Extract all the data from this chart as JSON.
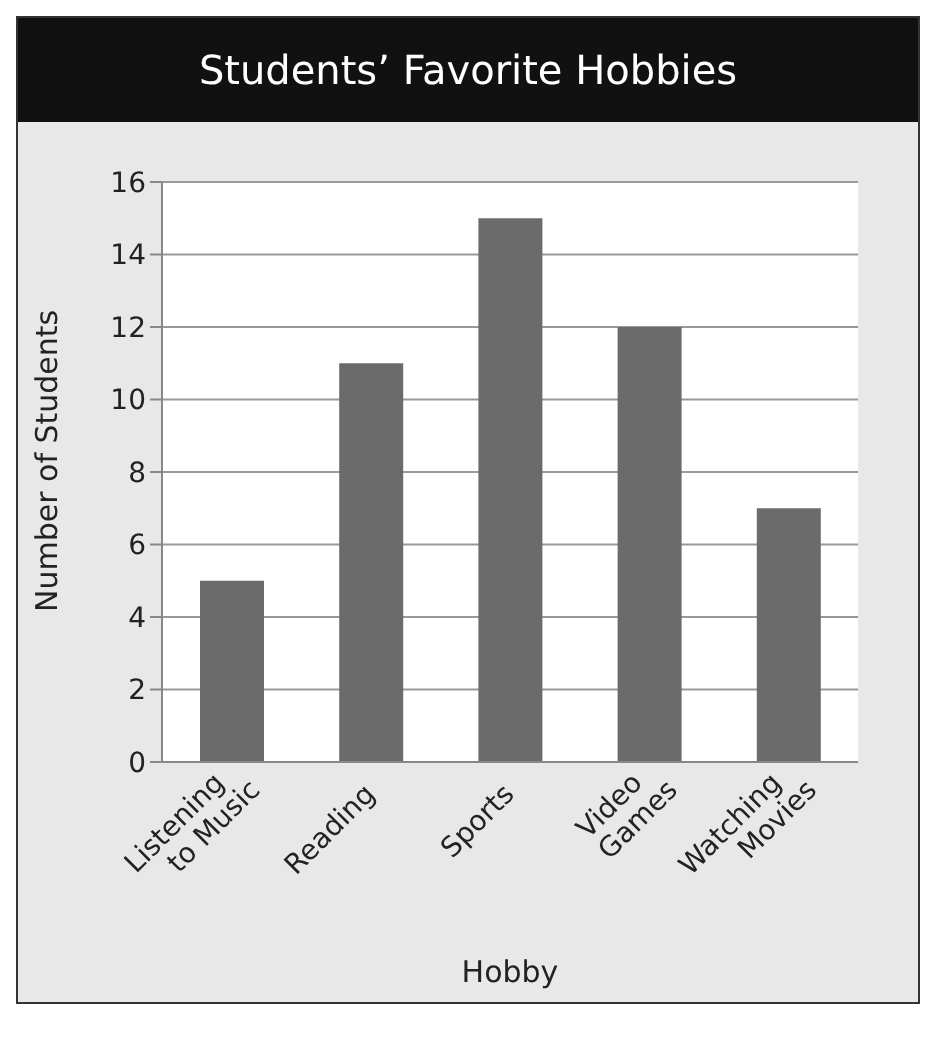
{
  "chart_data": {
    "type": "bar",
    "title": "Students’ Favorite Hobbies",
    "xlabel": "Hobby",
    "ylabel": "Number of Students",
    "categories": [
      "Listening to Music",
      "Reading",
      "Sports",
      "Video Games",
      "Watching Movies"
    ],
    "values": [
      5,
      11,
      15,
      12,
      7
    ],
    "color": "#6b6b6b",
    "ylim": [
      0,
      16
    ],
    "yticks": [
      0,
      2,
      4,
      6,
      8,
      10,
      12,
      14,
      16
    ],
    "grid": "y",
    "legend": false
  }
}
